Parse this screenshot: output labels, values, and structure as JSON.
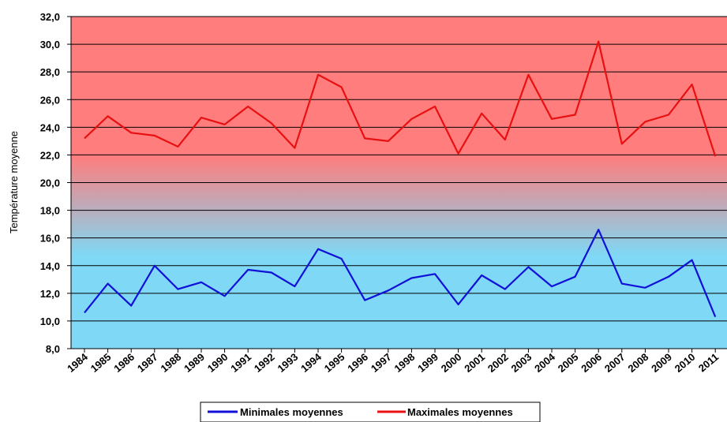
{
  "chart_data": {
    "type": "line",
    "title": "",
    "xlabel": "",
    "ylabel": "Température moyenne",
    "ylim": [
      8,
      32
    ],
    "ytick_step": 2,
    "ytick_labels": [
      "8,0",
      "10,0",
      "12,0",
      "14,0",
      "16,0",
      "18,0",
      "20,0",
      "22,0",
      "24,0",
      "26,0",
      "28,0",
      "30,0",
      "32,0"
    ],
    "grid": true,
    "legend_position": "bottom",
    "background_gradient": {
      "top": "#ff7d7d",
      "bottom": "#7fd8f5"
    },
    "categories": [
      "1984",
      "1985",
      "1986",
      "1987",
      "1988",
      "1989",
      "1990",
      "1991",
      "1992",
      "1993",
      "1994",
      "1995",
      "1996",
      "1997",
      "1998",
      "1999",
      "2000",
      "2001",
      "2002",
      "2003",
      "2004",
      "2005",
      "2006",
      "2007",
      "2008",
      "2009",
      "2010",
      "2011"
    ],
    "series": [
      {
        "name": "Minimales moyennes",
        "color": "#1010d8",
        "values": [
          10.6,
          12.7,
          11.1,
          14.0,
          12.3,
          12.8,
          11.8,
          13.7,
          13.5,
          12.5,
          15.2,
          14.5,
          11.5,
          12.2,
          13.1,
          13.4,
          11.2,
          13.3,
          12.3,
          13.9,
          12.5,
          13.2,
          16.6,
          12.7,
          12.4,
          13.2,
          14.4,
          10.3
        ]
      },
      {
        "name": "Maximales moyennes",
        "color": "#e81010",
        "values": [
          23.2,
          24.8,
          23.6,
          23.4,
          22.6,
          24.7,
          24.2,
          25.5,
          24.3,
          22.5,
          27.8,
          26.9,
          23.2,
          23.0,
          24.6,
          25.5,
          22.1,
          25.0,
          23.1,
          27.8,
          24.6,
          24.9,
          30.2,
          22.8,
          24.4,
          24.9,
          27.1,
          21.9
        ]
      }
    ]
  }
}
